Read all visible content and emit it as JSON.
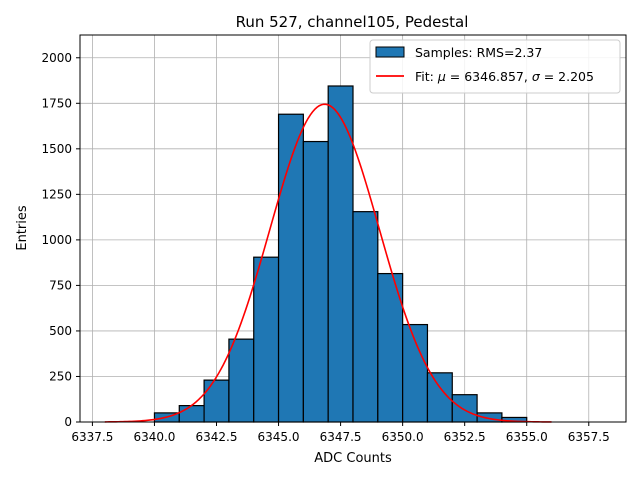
{
  "chart_data": {
    "type": "bar",
    "title": "Run 527, channel105, Pedestal",
    "xlabel": "ADC Counts",
    "ylabel": "Entries",
    "xlim": [
      6337.0,
      6359.0
    ],
    "ylim": [
      0,
      2125
    ],
    "xticks": [
      6337.5,
      6340.0,
      6342.5,
      6345.0,
      6347.5,
      6350.0,
      6352.5,
      6355.0,
      6357.5
    ],
    "xtick_labels": [
      "6337.5",
      "6340.0",
      "6342.5",
      "6345.0",
      "6347.5",
      "6350.0",
      "6352.5",
      "6355.0",
      "6357.5"
    ],
    "yticks": [
      0,
      250,
      500,
      750,
      1000,
      1250,
      1500,
      1750,
      2000
    ],
    "ytick_labels": [
      "0",
      "250",
      "500",
      "750",
      "1000",
      "1250",
      "1500",
      "1750",
      "2000"
    ],
    "grid": true,
    "legend_position": "top-right",
    "histogram": {
      "name": "Samples: RMS=2.37",
      "color": "#1f77b4",
      "edge_color": "#000000",
      "bin_edges": [
        6340,
        6341,
        6342,
        6343,
        6344,
        6345,
        6346,
        6347,
        6348,
        6349,
        6350,
        6351,
        6352,
        6353,
        6354,
        6355
      ],
      "values": [
        50,
        90,
        230,
        455,
        905,
        1690,
        1540,
        1845,
        1155,
        815,
        535,
        270,
        150,
        50,
        25
      ]
    },
    "fit": {
      "name_prefix": "Fit: ",
      "mu_symbol": "μ",
      "mu_value": " = 6346.857, ",
      "sigma_symbol": "σ",
      "sigma_value": " = 2.205",
      "color": "#ff0000",
      "mu": 6346.857,
      "sigma": 2.205,
      "amplitude": 1745,
      "x_range": [
        6338.0,
        6356.0
      ]
    }
  }
}
